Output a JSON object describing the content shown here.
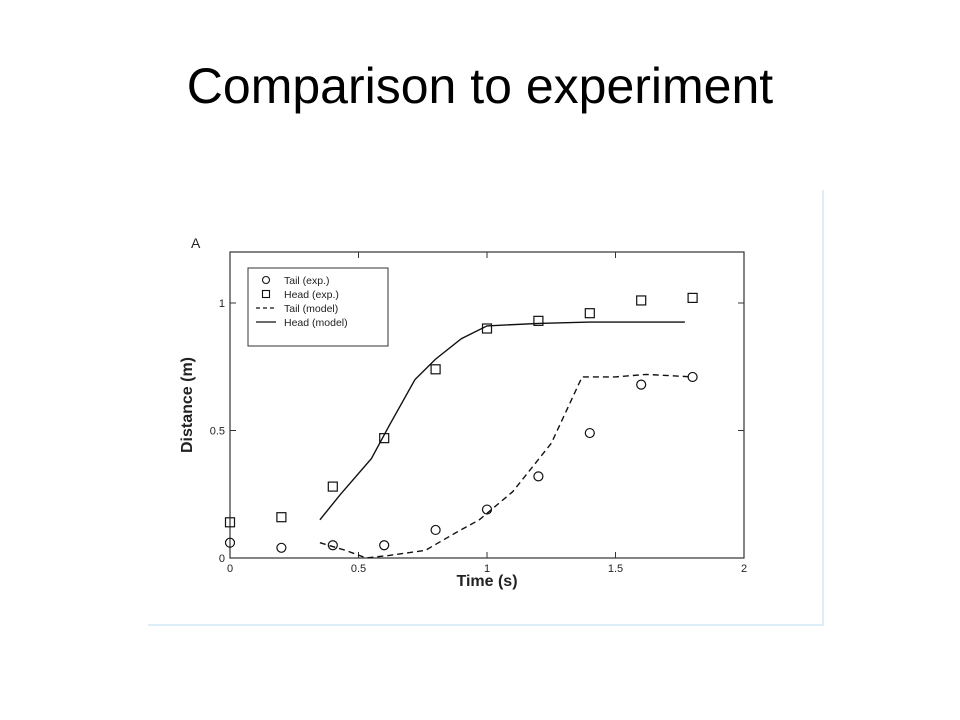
{
  "slide": {
    "title": "Comparison to experiment"
  },
  "chart_data": {
    "type": "scatter",
    "panel_label": "A",
    "xlabel": "Time (s)",
    "ylabel": "Distance (m)",
    "xlim": [
      0,
      2
    ],
    "ylim": [
      0,
      1.2
    ],
    "x_ticks": [
      {
        "value": 0,
        "label": "0"
      },
      {
        "value": 0.5,
        "label": "0.5"
      },
      {
        "value": 1,
        "label": "1"
      },
      {
        "value": 1.5,
        "label": "1.5"
      },
      {
        "value": 2,
        "label": "2"
      }
    ],
    "y_ticks": [
      {
        "value": 0,
        "label": "0"
      },
      {
        "value": 0.5,
        "label": "0.5"
      },
      {
        "value": 1,
        "label": "1"
      }
    ],
    "grid": false,
    "legend_position": "top-left",
    "series": [
      {
        "name": "Tail (exp.)",
        "kind": "marker",
        "marker": "circle",
        "x": [
          0,
          0.2,
          0.4,
          0.6,
          0.8,
          1.0,
          1.2,
          1.4,
          1.6,
          1.8
        ],
        "y": [
          0.06,
          0.04,
          0.05,
          0.05,
          0.11,
          0.19,
          0.32,
          0.49,
          0.68,
          0.71
        ]
      },
      {
        "name": "Head (exp.)",
        "kind": "marker",
        "marker": "square",
        "x": [
          0,
          0.2,
          0.4,
          0.6,
          0.8,
          1.0,
          1.2,
          1.4,
          1.6,
          1.8
        ],
        "y": [
          0.14,
          0.16,
          0.28,
          0.47,
          0.74,
          0.9,
          0.93,
          0.96,
          1.01,
          1.02
        ]
      },
      {
        "name": "Tail (model)",
        "kind": "line",
        "dash": "dashed",
        "x": [
          0.35,
          0.45,
          0.53,
          0.62,
          0.76,
          0.88,
          0.97,
          1.1,
          1.25,
          1.37,
          1.5,
          1.62,
          1.8
        ],
        "y": [
          0.06,
          0.03,
          0.0,
          0.01,
          0.03,
          0.1,
          0.15,
          0.26,
          0.45,
          0.71,
          0.71,
          0.72,
          0.71
        ]
      },
      {
        "name": "Head (model)",
        "kind": "line",
        "dash": "solid",
        "x": [
          0.35,
          0.43,
          0.55,
          0.62,
          0.72,
          0.8,
          0.9,
          1.0,
          1.2,
          1.4,
          1.6,
          1.77
        ],
        "y": [
          0.15,
          0.25,
          0.39,
          0.52,
          0.7,
          0.78,
          0.86,
          0.91,
          0.92,
          0.925,
          0.925,
          0.925
        ]
      }
    ]
  }
}
